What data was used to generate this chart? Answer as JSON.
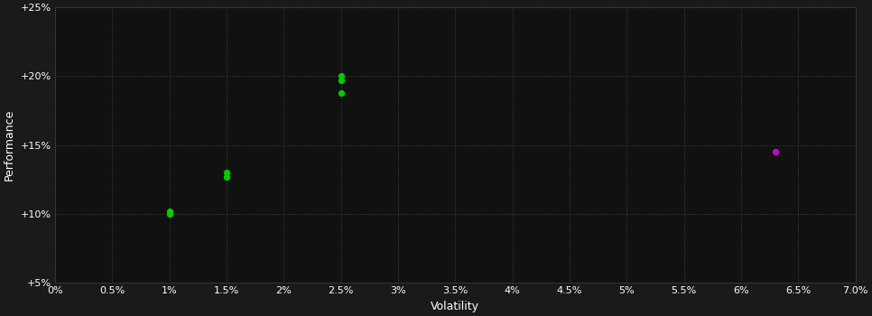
{
  "background_color": "#1a1a1a",
  "plot_bg_color": "#111111",
  "grid_color": "#404040",
  "grid_style": ":",
  "xlabel": "Volatility",
  "ylabel": "Performance",
  "xlim": [
    0.0,
    0.07
  ],
  "ylim": [
    0.05,
    0.25
  ],
  "x_ticks": [
    0.0,
    0.005,
    0.01,
    0.015,
    0.02,
    0.025,
    0.03,
    0.035,
    0.04,
    0.045,
    0.05,
    0.055,
    0.06,
    0.065,
    0.07
  ],
  "y_ticks": [
    0.05,
    0.1,
    0.15,
    0.2,
    0.25
  ],
  "green_points": [
    [
      0.01,
      0.1
    ],
    [
      0.01,
      0.102
    ],
    [
      0.015,
      0.127
    ],
    [
      0.015,
      0.13
    ],
    [
      0.025,
      0.197
    ],
    [
      0.025,
      0.2
    ],
    [
      0.025,
      0.188
    ]
  ],
  "magenta_points": [
    [
      0.063,
      0.145
    ]
  ],
  "green_color": "#00cc00",
  "magenta_color": "#cc00cc",
  "marker_size": 18,
  "tick_label_color": "#ffffff",
  "axis_label_color": "#ffffff",
  "tick_fontsize": 8,
  "label_fontsize": 9
}
